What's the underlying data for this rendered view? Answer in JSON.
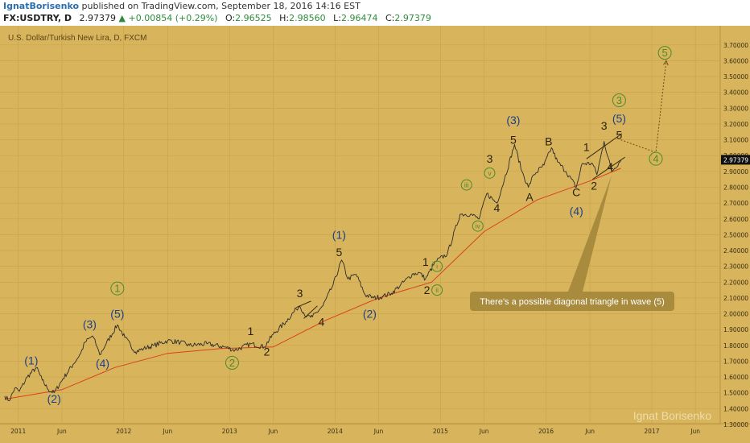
{
  "header": {
    "author": "IgnatBorisenko",
    "published": "published on TradingView.com, September 18, 2016 14:16 EST"
  },
  "quote": {
    "symbol": "FX:USDTRY, D",
    "last": "2.97379",
    "arrow": "▲",
    "change": "+0.00854 (+0.29%)",
    "open_label": "O:",
    "open": "2.96525",
    "high_label": "H:",
    "high": "2.98560",
    "low_label": "L:",
    "low": "2.96474",
    "close_label": "C:",
    "close": "2.97379"
  },
  "colors": {
    "background": "#d8b55c",
    "grid": "#c9a24a",
    "price_line": "#2b2b2b",
    "moving_average": "#d9401f",
    "blue_label": "#1b3f8c",
    "green_label": "#4d8a2c",
    "dark_label": "#2a1f0f",
    "callout": "#a88b3d"
  },
  "watermark": "Ignat Borisenko",
  "callout_text": "There's a possible diagonal triangle in wave (5)",
  "chart_data": {
    "type": "line",
    "title": "U.S. Dollar/Turkish New Lira, D, FXCM",
    "x_tick_labels": [
      "2011",
      "Jun",
      "2012",
      "Jun",
      "2013",
      "Jun",
      "2014",
      "Jun",
      "2015",
      "Jun",
      "2016",
      "Jun",
      "2017",
      "Jun"
    ],
    "x_tick_dates": [
      "2011-01",
      "2011-06",
      "2012-01",
      "2012-06",
      "2013-01",
      "2013-06",
      "2014-01",
      "2014-06",
      "2015-01",
      "2015-06",
      "2016-01",
      "2016-06",
      "2017-01",
      "2017-06"
    ],
    "y_ticks": [
      "1.30000",
      "1.40000",
      "1.50000",
      "1.60000",
      "1.70000",
      "1.80000",
      "1.90000",
      "2.00000",
      "2.10000",
      "2.20000",
      "2.30000",
      "2.40000",
      "2.50000",
      "2.60000",
      "2.70000",
      "2.80000",
      "2.90000",
      "3.00000",
      "3.10000",
      "3.20000",
      "3.30000",
      "3.40000",
      "3.50000",
      "3.60000",
      "3.70000"
    ],
    "ylim": [
      1.3,
      3.75
    ],
    "last_price_label": "2.97379",
    "series": [
      {
        "name": "USDTRY",
        "points": [
          [
            "2010-11-15",
            1.48
          ],
          [
            "2010-12-01",
            1.45
          ],
          [
            "2010-12-20",
            1.53
          ],
          [
            "2011-01-05",
            1.51
          ],
          [
            "2011-02-01",
            1.6
          ],
          [
            "2011-03-05",
            1.66
          ],
          [
            "2011-03-25",
            1.58
          ],
          [
            "2011-04-15",
            1.52
          ],
          [
            "2011-05-05",
            1.5
          ],
          [
            "2011-06-05",
            1.59
          ],
          [
            "2011-07-10",
            1.68
          ],
          [
            "2011-08-05",
            1.75
          ],
          [
            "2011-08-20",
            1.82
          ],
          [
            "2011-09-15",
            1.86
          ],
          [
            "2011-10-01",
            1.79
          ],
          [
            "2011-10-10",
            1.74
          ],
          [
            "2011-11-01",
            1.81
          ],
          [
            "2011-12-10",
            1.93
          ],
          [
            "2012-01-05",
            1.85
          ],
          [
            "2012-02-10",
            1.76
          ],
          [
            "2012-03-10",
            1.78
          ],
          [
            "2012-04-15",
            1.8
          ],
          [
            "2012-06-01",
            1.83
          ],
          [
            "2012-07-15",
            1.82
          ],
          [
            "2012-08-15",
            1.8
          ],
          [
            "2012-10-15",
            1.81
          ],
          [
            "2012-12-15",
            1.79
          ],
          [
            "2013-01-20",
            1.77
          ],
          [
            "2013-03-15",
            1.81
          ],
          [
            "2013-05-01",
            1.79
          ],
          [
            "2013-06-01",
            1.87
          ],
          [
            "2013-07-15",
            1.95
          ],
          [
            "2013-08-20",
            2.03
          ],
          [
            "2013-09-01",
            2.05
          ],
          [
            "2013-09-25",
            1.98
          ],
          [
            "2013-10-15",
            1.98
          ],
          [
            "2013-11-20",
            2.05
          ],
          [
            "2013-12-25",
            2.18
          ],
          [
            "2014-01-24",
            2.34
          ],
          [
            "2014-02-15",
            2.22
          ],
          [
            "2014-03-15",
            2.25
          ],
          [
            "2014-04-15",
            2.12
          ],
          [
            "2014-05-15",
            2.1
          ],
          [
            "2014-06-15",
            2.11
          ],
          [
            "2014-07-15",
            2.13
          ],
          [
            "2014-08-15",
            2.18
          ],
          [
            "2014-09-25",
            2.25
          ],
          [
            "2014-10-20",
            2.26
          ],
          [
            "2014-11-10",
            2.22
          ],
          [
            "2014-12-15",
            2.33
          ],
          [
            "2015-01-25",
            2.38
          ],
          [
            "2015-03-10",
            2.63
          ],
          [
            "2015-04-15",
            2.63
          ],
          [
            "2015-05-15",
            2.6
          ],
          [
            "2015-06-10",
            2.76
          ],
          [
            "2015-07-15",
            2.7
          ],
          [
            "2015-08-10",
            2.85
          ],
          [
            "2015-09-14",
            3.07
          ],
          [
            "2015-10-10",
            2.9
          ],
          [
            "2015-11-01",
            2.8
          ],
          [
            "2015-11-20",
            2.88
          ],
          [
            "2015-12-25",
            2.94
          ],
          [
            "2016-01-20",
            3.05
          ],
          [
            "2016-02-10",
            2.96
          ],
          [
            "2016-03-10",
            2.9
          ],
          [
            "2016-04-15",
            2.8
          ],
          [
            "2016-05-05",
            2.95
          ],
          [
            "2016-06-10",
            2.95
          ],
          [
            "2016-06-25",
            2.88
          ],
          [
            "2016-07-20",
            3.09
          ],
          [
            "2016-08-15",
            2.9
          ],
          [
            "2016-09-16",
            2.97
          ]
        ]
      },
      {
        "name": "Moving Average",
        "points": [
          [
            "2010-11-15",
            1.46
          ],
          [
            "2011-06-01",
            1.52
          ],
          [
            "2011-12-01",
            1.66
          ],
          [
            "2012-06-01",
            1.75
          ],
          [
            "2012-12-01",
            1.78
          ],
          [
            "2013-06-01",
            1.79
          ],
          [
            "2013-12-01",
            1.96
          ],
          [
            "2014-06-01",
            2.1
          ],
          [
            "2014-12-01",
            2.2
          ],
          [
            "2015-06-01",
            2.52
          ],
          [
            "2015-12-01",
            2.72
          ],
          [
            "2016-06-01",
            2.84
          ],
          [
            "2016-09-16",
            2.92
          ]
        ]
      }
    ],
    "annotations": [
      {
        "text": "(1)",
        "x": "2011-02-15",
        "y": 1.705,
        "color": "blue"
      },
      {
        "text": "(2)",
        "x": "2011-05-05",
        "y": 1.462,
        "color": "blue"
      },
      {
        "text": "(3)",
        "x": "2011-09-05",
        "y": 1.935,
        "color": "blue"
      },
      {
        "text": "(4)",
        "x": "2011-10-20",
        "y": 1.688,
        "color": "blue"
      },
      {
        "text": "(5)",
        "x": "2011-12-10",
        "y": 2.0,
        "color": "blue"
      },
      {
        "text": "1",
        "x": "2011-12-10",
        "y": 2.16,
        "color": "green",
        "circled": true
      },
      {
        "text": "2",
        "x": "2013-01-10",
        "y": 1.69,
        "color": "green",
        "circled": true
      },
      {
        "text": "1",
        "x": "2013-03-15",
        "y": 1.89,
        "color": "dark"
      },
      {
        "text": "2",
        "x": "2013-05-10",
        "y": 1.76,
        "color": "dark"
      },
      {
        "text": "3",
        "x": "2013-09-01",
        "y": 2.13,
        "color": "dark"
      },
      {
        "text": "4",
        "x": "2013-11-15",
        "y": 1.95,
        "color": "dark"
      },
      {
        "text": "(1)",
        "x": "2014-01-15",
        "y": 2.5,
        "color": "blue"
      },
      {
        "text": "5",
        "x": "2014-01-15",
        "y": 2.39,
        "color": "dark"
      },
      {
        "text": "(2)",
        "x": "2014-05-01",
        "y": 2.0,
        "color": "blue"
      },
      {
        "text": "1",
        "x": "2014-11-10",
        "y": 2.33,
        "color": "dark"
      },
      {
        "text": "2",
        "x": "2014-11-15",
        "y": 2.15,
        "color": "dark"
      },
      {
        "text": "i",
        "x": "2014-12-20",
        "y": 2.3,
        "color": "green",
        "circled": true
      },
      {
        "text": "ii",
        "x": "2014-12-20",
        "y": 2.15,
        "color": "green",
        "circled": true
      },
      {
        "text": "iii",
        "x": "2015-04-01",
        "y": 2.815,
        "color": "green",
        "circled": true
      },
      {
        "text": "iv",
        "x": "2015-05-10",
        "y": 2.555,
        "color": "green",
        "circled": true
      },
      {
        "text": "v",
        "x": "2015-06-20",
        "y": 2.89,
        "color": "green",
        "circled": true
      },
      {
        "text": "3",
        "x": "2015-06-20",
        "y": 2.98,
        "color": "dark"
      },
      {
        "text": "4",
        "x": "2015-07-15",
        "y": 2.67,
        "color": "dark"
      },
      {
        "text": "(3)",
        "x": "2015-09-10",
        "y": 3.225,
        "color": "blue"
      },
      {
        "text": "5",
        "x": "2015-09-10",
        "y": 3.1,
        "color": "dark"
      },
      {
        "text": "A",
        "x": "2015-11-05",
        "y": 2.74,
        "color": "dark"
      },
      {
        "text": "B",
        "x": "2016-01-10",
        "y": 3.09,
        "color": "dark"
      },
      {
        "text": "C",
        "x": "2016-04-15",
        "y": 2.77,
        "color": "dark"
      },
      {
        "text": "(4)",
        "x": "2016-04-15",
        "y": 2.65,
        "color": "blue"
      },
      {
        "text": "1",
        "x": "2016-05-20",
        "y": 3.055,
        "color": "dark"
      },
      {
        "text": "2",
        "x": "2016-06-15",
        "y": 2.81,
        "color": "dark"
      },
      {
        "text": "3",
        "x": "2016-07-20",
        "y": 3.19,
        "color": "dark"
      },
      {
        "text": "4",
        "x": "2016-08-10",
        "y": 2.93,
        "color": "dark"
      },
      {
        "text": "5",
        "x": "2016-09-10",
        "y": 3.13,
        "color": "dark"
      },
      {
        "text": "(5)",
        "x": "2016-09-10",
        "y": 3.235,
        "color": "blue"
      },
      {
        "text": "3",
        "x": "2016-09-10",
        "y": 3.35,
        "color": "green",
        "circled": true
      },
      {
        "text": "4",
        "x": "2017-01-15",
        "y": 2.98,
        "color": "green",
        "circled": true
      },
      {
        "text": "5",
        "x": "2017-02-15",
        "y": 3.65,
        "color": "green",
        "circled": true
      }
    ],
    "projection": [
      [
        "2016-09-16",
        3.1
      ],
      [
        "2017-01-15",
        3.02
      ],
      [
        "2017-02-20",
        3.6
      ]
    ],
    "diagonal_lines": [
      [
        [
          "2013-08-20",
          2.04
        ],
        [
          "2013-10-10",
          2.08
        ]
      ],
      [
        [
          "2013-09-15",
          1.97
        ],
        [
          "2013-11-01",
          2.05
        ]
      ],
      [
        [
          "2016-05-20",
          2.98
        ],
        [
          "2016-09-20",
          3.14
        ]
      ],
      [
        [
          "2016-06-10",
          2.85
        ],
        [
          "2016-09-30",
          2.99
        ]
      ]
    ]
  }
}
